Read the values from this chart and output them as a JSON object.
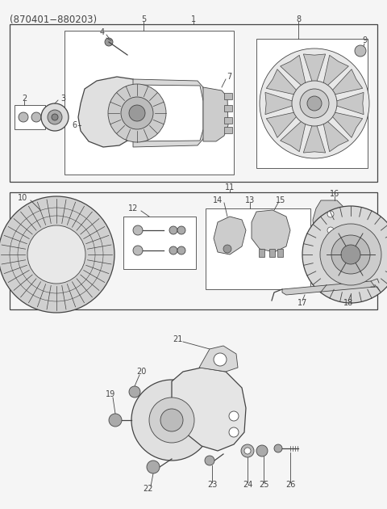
{
  "title": "(870401−880203)",
  "bg": "#f5f5f5",
  "lc": "#444444",
  "fig_w": 4.8,
  "fig_h": 6.3,
  "dpi": 100
}
